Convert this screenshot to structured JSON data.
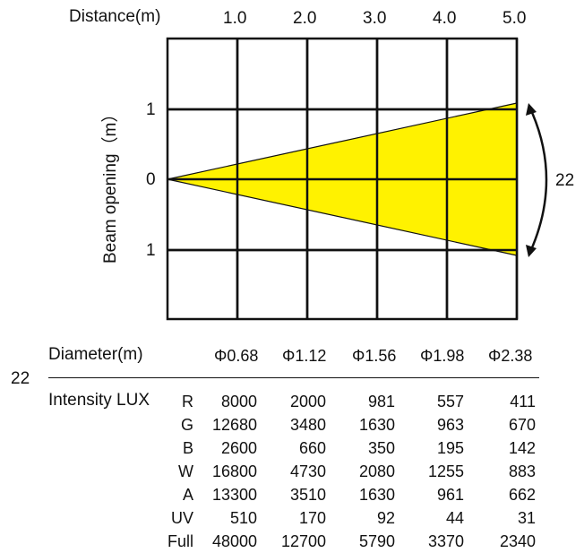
{
  "diagram": {
    "distance_label": "Distance(m)",
    "distance_ticks": [
      "1.0",
      "2.0",
      "3.0",
      "4.0",
      "5.0"
    ],
    "beam_opening_label": "Beam opening（m）",
    "opening_ticks": [
      "1",
      "0",
      "1"
    ],
    "angle_label": "22",
    "beam_color": "#FFF200",
    "grid_color": "#111111"
  },
  "table": {
    "angle_label": "22",
    "diameter_label": "Diameter(m)",
    "diameters": [
      "Φ0.68",
      "Φ1.12",
      "Φ1.56",
      "Φ1.98",
      "Φ2.38"
    ],
    "intensity_label": "Intensity LUX",
    "rows": [
      {
        "channel": "R",
        "values": [
          "8000",
          "2000",
          "981",
          "557",
          "411"
        ]
      },
      {
        "channel": "G",
        "values": [
          "12680",
          "3480",
          "1630",
          "963",
          "670"
        ]
      },
      {
        "channel": "B",
        "values": [
          "2600",
          "660",
          "350",
          "195",
          "142"
        ]
      },
      {
        "channel": "W",
        "values": [
          "16800",
          "4730",
          "2080",
          "1255",
          "883"
        ]
      },
      {
        "channel": "A",
        "values": [
          "13300",
          "3510",
          "1630",
          "961",
          "662"
        ]
      },
      {
        "channel": "UV",
        "values": [
          "510",
          "170",
          "92",
          "44",
          "31"
        ]
      },
      {
        "channel": "Full",
        "values": [
          "48000",
          "12700",
          "5790",
          "3370",
          "2340"
        ]
      }
    ]
  }
}
